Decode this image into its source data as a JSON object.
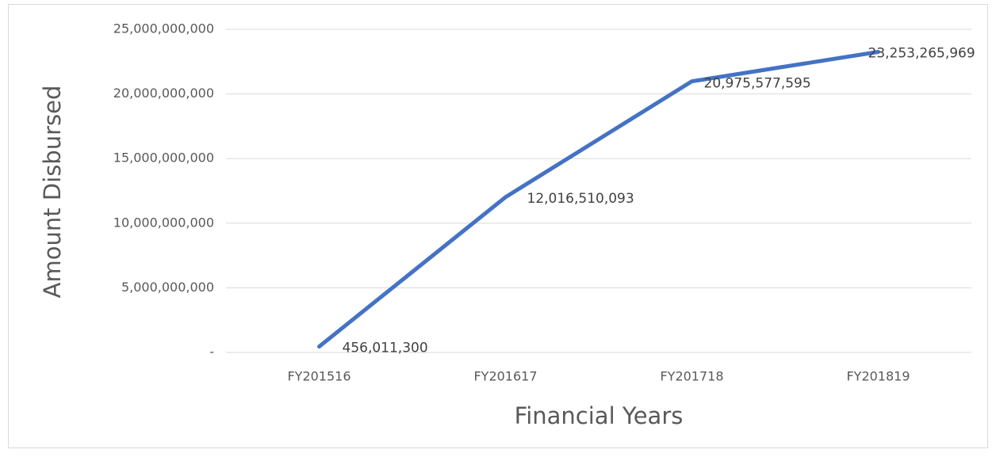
{
  "chart_data": {
    "type": "line",
    "x_label": "Financial Years",
    "y_label": "Amount Disbursed",
    "categories": [
      "FY201516",
      "FY201617",
      "FY201718",
      "FY201819"
    ],
    "series": [
      {
        "name": "Amount Disbursed",
        "color": "#4472c4",
        "values": [
          456011300,
          12016510093,
          20975577595,
          23253265969
        ],
        "value_labels": [
          "456,011,300",
          "12,016,510,093",
          "20,975,577,595",
          "23,253,265,969"
        ]
      }
    ],
    "ylim": [
      0,
      25000000000
    ],
    "yticks": [
      {
        "value": 0,
        "label": "-"
      },
      {
        "value": 5000000000,
        "label": "5,000,000,000"
      },
      {
        "value": 10000000000,
        "label": "10,000,000,000"
      },
      {
        "value": 15000000000,
        "label": "15,000,000,000"
      },
      {
        "value": 20000000000,
        "label": "20,000,000,000"
      },
      {
        "value": 25000000000,
        "label": "25,000,000,000"
      }
    ],
    "grid": true
  }
}
